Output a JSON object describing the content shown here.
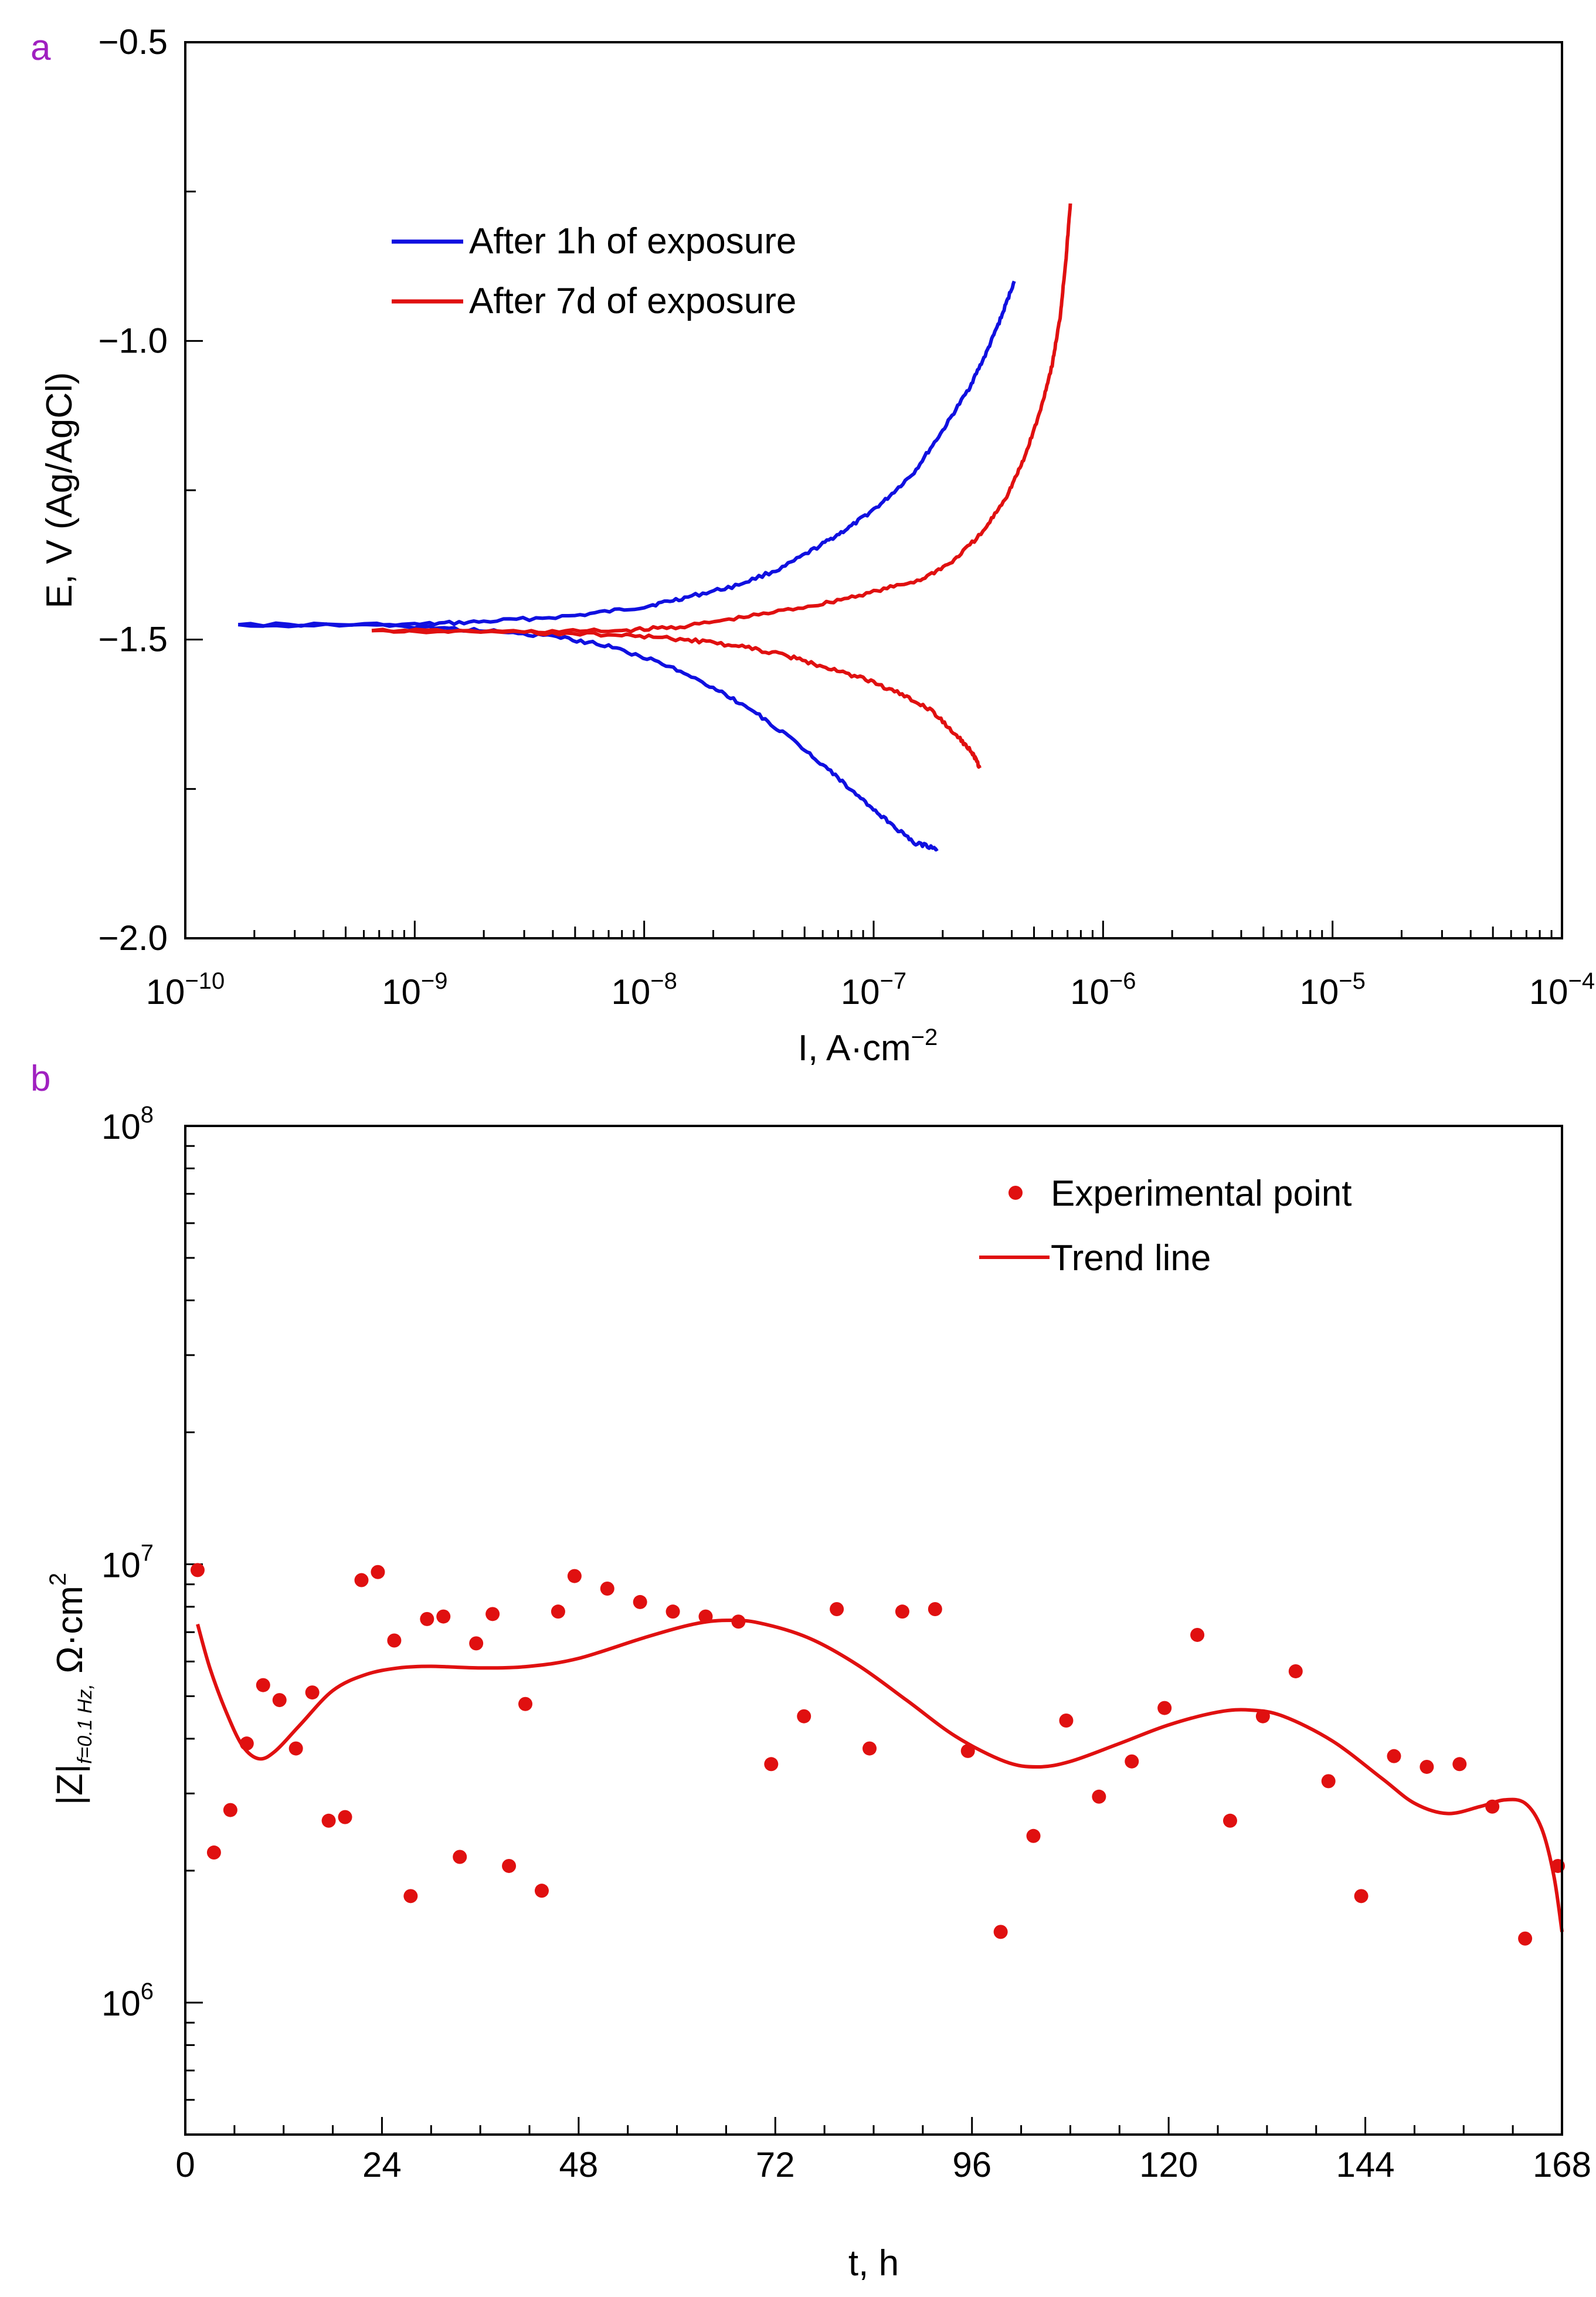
{
  "chart_data": [
    {
      "panel_label": "a",
      "type": "line",
      "x_scale": "log",
      "xlabel": "I, A·cm",
      "xlabel_sup": "−2",
      "ylabel": "E, V (Ag/AgCl)",
      "xlim": [
        1e-10,
        0.0001
      ],
      "ylim": [
        -2.0,
        -0.5
      ],
      "x_ticks": [
        {
          "base": "10",
          "exp": "−10",
          "value": 1e-10
        },
        {
          "base": "10",
          "exp": "−9",
          "value": 1e-09
        },
        {
          "base": "10",
          "exp": "−8",
          "value": 1e-08
        },
        {
          "base": "10",
          "exp": "−7",
          "value": 1e-07
        },
        {
          "base": "10",
          "exp": "−6",
          "value": 1e-06
        },
        {
          "base": "10",
          "exp": "−5",
          "value": 1e-05
        },
        {
          "base": "10",
          "exp": "−4",
          "value": 0.0001
        }
      ],
      "y_ticks": [
        {
          "label": "−0.5",
          "value": -0.5
        },
        {
          "label": "−1.0",
          "value": -1.0
        },
        {
          "label": "−1.5",
          "value": -1.5
        },
        {
          "label": "−2.0",
          "value": -2.0
        }
      ],
      "legend_position": "upper-left",
      "series": [
        {
          "name": "After 1h of exposure",
          "color": "#1010e0",
          "anodic": [
            [
              1.7e-10,
              -1.475
            ],
            [
              1e-09,
              -1.475
            ],
            [
              2e-09,
              -1.47
            ],
            [
              5e-09,
              -1.46
            ],
            [
              1e-08,
              -1.445
            ],
            [
              1.5e-08,
              -1.43
            ],
            [
              2.5e-08,
              -1.41
            ],
            [
              4e-08,
              -1.38
            ],
            [
              6e-08,
              -1.34
            ],
            [
              8e-08,
              -1.31
            ],
            [
              1.1e-07,
              -1.27
            ],
            [
              1.5e-07,
              -1.22
            ],
            [
              2e-07,
              -1.15
            ],
            [
              2.6e-07,
              -1.08
            ],
            [
              3.1e-07,
              -1.02
            ],
            [
              3.6e-07,
              -0.96
            ],
            [
              4.1e-07,
              -0.9
            ]
          ],
          "cathodic": [
            [
              1.7e-10,
              -1.475
            ],
            [
              1e-09,
              -1.478
            ],
            [
              2e-09,
              -1.485
            ],
            [
              4e-09,
              -1.495
            ],
            [
              7e-09,
              -1.51
            ],
            [
              1.2e-08,
              -1.54
            ],
            [
              2e-08,
              -1.58
            ],
            [
              3e-08,
              -1.62
            ],
            [
              4.5e-08,
              -1.67
            ],
            [
              6.5e-08,
              -1.72
            ],
            [
              9e-08,
              -1.77
            ],
            [
              1.2e-07,
              -1.81
            ],
            [
              1.5e-07,
              -1.84
            ],
            [
              1.9e-07,
              -1.85
            ]
          ]
        },
        {
          "name": "After 7d of exposure",
          "color": "#e01010",
          "anodic": [
            [
              6.5e-10,
              -1.485
            ],
            [
              3e-09,
              -1.487
            ],
            [
              8e-09,
              -1.485
            ],
            [
              1.5e-08,
              -1.478
            ],
            [
              3e-08,
              -1.46
            ],
            [
              6e-08,
              -1.44
            ],
            [
              1e-07,
              -1.42
            ],
            [
              1.6e-07,
              -1.4
            ],
            [
              2.2e-07,
              -1.37
            ],
            [
              3e-07,
              -1.32
            ],
            [
              3.8e-07,
              -1.26
            ],
            [
              4.5e-07,
              -1.2
            ],
            [
              5.3e-07,
              -1.12
            ],
            [
              6e-07,
              -1.04
            ],
            [
              6.5e-07,
              -0.96
            ],
            [
              6.9e-07,
              -0.86
            ],
            [
              7.2e-07,
              -0.77
            ]
          ],
          "cathodic": [
            [
              6.5e-10,
              -1.485
            ],
            [
              3e-09,
              -1.488
            ],
            [
              8e-09,
              -1.492
            ],
            [
              1.5e-08,
              -1.5
            ],
            [
              2.5e-08,
              -1.51
            ],
            [
              4e-08,
              -1.525
            ],
            [
              6e-08,
              -1.545
            ],
            [
              9e-08,
              -1.565
            ],
            [
              1.3e-07,
              -1.59
            ],
            [
              1.8e-07,
              -1.62
            ],
            [
              2.3e-07,
              -1.66
            ],
            [
              2.7e-07,
              -1.69
            ],
            [
              2.9e-07,
              -1.715
            ]
          ]
        }
      ]
    },
    {
      "panel_label": "b",
      "type": "scatter",
      "y_scale": "log",
      "xlabel": "t, h",
      "ylabel_main": "|Z|",
      "ylabel_sub": "f=0.1 Hz,",
      "ylabel_unit": "Ω·cm",
      "ylabel_sup": "2",
      "xlim": [
        0,
        168
      ],
      "ylim": [
        500000.0,
        100000000.0
      ],
      "x_ticks": [
        {
          "label": "0",
          "value": 0
        },
        {
          "label": "24",
          "value": 24
        },
        {
          "label": "48",
          "value": 48
        },
        {
          "label": "72",
          "value": 72
        },
        {
          "label": "96",
          "value": 96
        },
        {
          "label": "120",
          "value": 120
        },
        {
          "label": "144",
          "value": 144
        },
        {
          "label": "168",
          "value": 168
        }
      ],
      "y_ticks": [
        {
          "base": "10",
          "exp": "6",
          "value": 1000000.0
        },
        {
          "base": "10",
          "exp": "7",
          "value": 10000000.0
        },
        {
          "base": "10",
          "exp": "8",
          "value": 100000000.0
        }
      ],
      "legend_position": "upper-right",
      "marker_color": "#e01010",
      "points_name": "Experimental point",
      "trend_name": "Trend line",
      "points": [
        [
          1.5,
          9700000.0
        ],
        [
          3.5,
          2200000.0
        ],
        [
          5.5,
          2750000.0
        ],
        [
          7.5,
          3900000.0
        ],
        [
          9.5,
          5300000.0
        ],
        [
          11.5,
          4900000.0
        ],
        [
          13.5,
          3800000.0
        ],
        [
          15.5,
          5100000.0
        ],
        [
          17.5,
          2600000.0
        ],
        [
          19.5,
          2650000.0
        ],
        [
          21.5,
          9200000.0
        ],
        [
          23.5,
          9600000.0
        ],
        [
          25.5,
          6700000.0
        ],
        [
          27.5,
          1750000.0
        ],
        [
          29.5,
          7500000.0
        ],
        [
          31.5,
          7600000.0
        ],
        [
          33.5,
          2150000.0
        ],
        [
          35.5,
          6600000.0
        ],
        [
          37.5,
          7700000.0
        ],
        [
          39.5,
          2050000.0
        ],
        [
          41.5,
          4800000.0
        ],
        [
          43.5,
          1800000.0
        ],
        [
          45.5,
          7800000.0
        ],
        [
          47.5,
          9400000.0
        ],
        [
          51.5,
          8800000.0
        ],
        [
          55.5,
          8200000.0
        ],
        [
          59.5,
          7800000.0
        ],
        [
          63.5,
          7600000.0
        ],
        [
          67.5,
          7400000.0
        ],
        [
          71.5,
          3500000.0
        ],
        [
          75.5,
          4500000.0
        ],
        [
          79.5,
          7900000.0
        ],
        [
          83.5,
          3800000.0
        ],
        [
          87.5,
          7800000.0
        ],
        [
          91.5,
          7900000.0
        ],
        [
          95.5,
          3750000.0
        ],
        [
          99.5,
          1450000.0
        ],
        [
          103.5,
          2400000.0
        ],
        [
          107.5,
          4400000.0
        ],
        [
          111.5,
          2950000.0
        ],
        [
          115.5,
          3550000.0
        ],
        [
          119.5,
          4700000.0
        ],
        [
          123.5,
          6900000.0
        ],
        [
          127.5,
          2600000.0
        ],
        [
          131.5,
          4500000.0
        ],
        [
          135.5,
          5700000.0
        ],
        [
          139.5,
          3200000.0
        ],
        [
          143.5,
          1750000.0
        ],
        [
          147.5,
          3650000.0
        ],
        [
          151.5,
          3450000.0
        ],
        [
          155.5,
          3500000.0
        ],
        [
          159.5,
          2800000.0
        ],
        [
          163.5,
          1400000.0
        ],
        [
          167.5,
          2050000.0
        ]
      ],
      "trend": [
        [
          1.5,
          7300000.0
        ],
        [
          3,
          5800000.0
        ],
        [
          5,
          4600000.0
        ],
        [
          7,
          3850000.0
        ],
        [
          9,
          3600000.0
        ],
        [
          11,
          3750000.0
        ],
        [
          14,
          4300000.0
        ],
        [
          18,
          5150000.0
        ],
        [
          22,
          5600000.0
        ],
        [
          26,
          5800000.0
        ],
        [
          30,
          5850000.0
        ],
        [
          36,
          5800000.0
        ],
        [
          42,
          5850000.0
        ],
        [
          48,
          6100000.0
        ],
        [
          56,
          6800000.0
        ],
        [
          62,
          7300000.0
        ],
        [
          66,
          7450000.0
        ],
        [
          70,
          7350000.0
        ],
        [
          76,
          6800000.0
        ],
        [
          82,
          5900000.0
        ],
        [
          88,
          4900000.0
        ],
        [
          94,
          4050000.0
        ],
        [
          100,
          3550000.0
        ],
        [
          104,
          3450000.0
        ],
        [
          108,
          3550000.0
        ],
        [
          114,
          3900000.0
        ],
        [
          120,
          4300000.0
        ],
        [
          126,
          4600000.0
        ],
        [
          130,
          4650000.0
        ],
        [
          134,
          4500000.0
        ],
        [
          140,
          3950000.0
        ],
        [
          146,
          3250000.0
        ],
        [
          150,
          2850000.0
        ],
        [
          154,
          2700000.0
        ],
        [
          158,
          2800000.0
        ],
        [
          161,
          2900000.0
        ],
        [
          163.5,
          2850000.0
        ],
        [
          165.5,
          2500000.0
        ],
        [
          167,
          1950000.0
        ],
        [
          168,
          1450000.0
        ]
      ]
    }
  ]
}
